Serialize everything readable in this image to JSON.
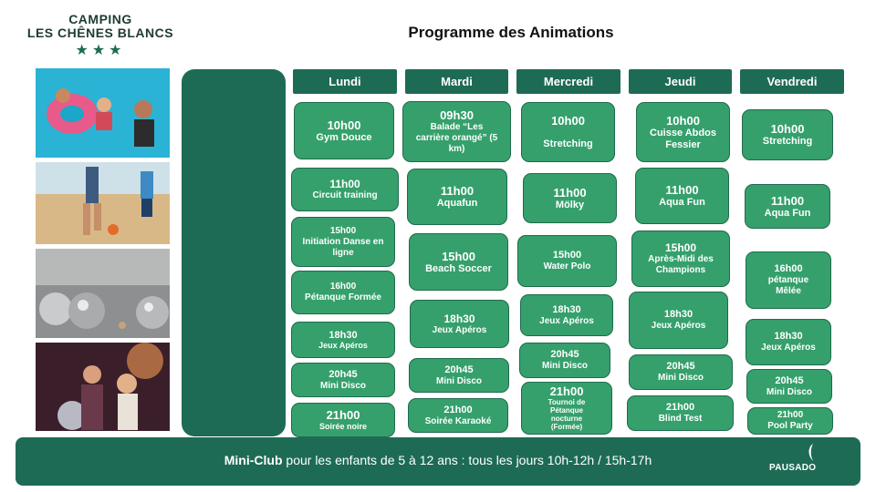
{
  "header": {
    "logo_line1": "CAMPING",
    "logo_line2": "LES CHÊNES BLANCS",
    "logo_stars": "★★★",
    "title": "Programme des Animations"
  },
  "photos": [
    "pool-family-photo",
    "beach-soccer-photo",
    "petanque-balls-photo",
    "disco-party-photo"
  ],
  "days": [
    "Lundi",
    "Mardi",
    "Mercredi",
    "Jeudi",
    "Vendredi"
  ],
  "schedule": {
    "lundi": [
      {
        "time": "10h00",
        "name": "Gym Douce"
      },
      {
        "time": "11h00",
        "name": "Circuit training"
      },
      {
        "time": "15h00",
        "name": "Initiation Danse en ligne"
      },
      {
        "time": "16h00",
        "name": "Pétanque Formée"
      },
      {
        "time": "18h30",
        "name": "Jeux Apéros"
      },
      {
        "time": "20h45",
        "name": "Mini Disco"
      },
      {
        "time": "21h00",
        "name": "Soirée noire"
      }
    ],
    "mardi": [
      {
        "time": "09h30",
        "name": "Balade “Les carrière orangé” (5 km)"
      },
      {
        "time": "11h00",
        "name": "Aquafun"
      },
      {
        "time": "15h00",
        "name": "Beach Soccer"
      },
      {
        "time": "18h30",
        "name": "Jeux Apéros"
      },
      {
        "time": "20h45",
        "name": "Mini Disco"
      },
      {
        "time": "21h00",
        "name": "Soirée Karaoké"
      }
    ],
    "mercredi": [
      {
        "time": "10h00",
        "name": "Stretching"
      },
      {
        "time": "11h00",
        "name": "Mölky"
      },
      {
        "time": "15h00",
        "name": "Water Polo"
      },
      {
        "time": "18h30",
        "name": "Jeux Apéros"
      },
      {
        "time": "20h45",
        "name": "Mini Disco"
      },
      {
        "time": "21h00",
        "name": "Tournoi de Pétanque nocturne (Formée)"
      }
    ],
    "jeudi": [
      {
        "time": "10h00",
        "name": "Cuisse Abdos Fessier"
      },
      {
        "time": "11h00",
        "name": "Aqua Fun"
      },
      {
        "time": "15h00",
        "name": "Après-Midi des Champions"
      },
      {
        "time": "18h30",
        "name": "Jeux Apéros"
      },
      {
        "time": "20h45",
        "name": "Mini Disco"
      },
      {
        "time": "21h00",
        "name": "Blind Test"
      }
    ],
    "vendredi": [
      {
        "time": "10h00",
        "name": "Stretching"
      },
      {
        "time": "11h00",
        "name": "Aqua Fun"
      },
      {
        "time": "16h00",
        "name": "pétanque Mêlée"
      },
      {
        "time": "18h30",
        "name": "Jeux Apéros"
      },
      {
        "time": "20h45",
        "name": "Mini Disco"
      },
      {
        "time": "21h00",
        "name": "Pool Party"
      }
    ]
  },
  "footer": {
    "bold": "Mini-Club",
    "text": " pour les enfants de 5 à 12 ans : tous les jours 10h-12h / 15h-17h",
    "brand": "PAUSADO"
  },
  "colors": {
    "primary": "#1e6b55",
    "event": "#35a06c"
  }
}
